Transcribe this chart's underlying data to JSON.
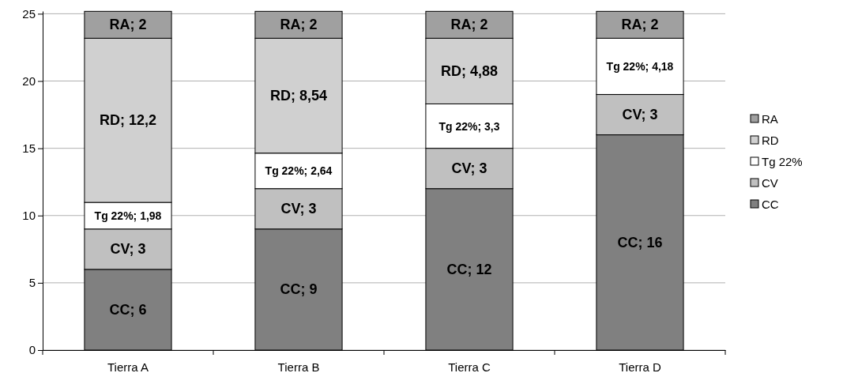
{
  "chart_data": {
    "type": "bar",
    "stacked": true,
    "categories": [
      "Tierra A",
      "Tierra B",
      "Tierra C",
      "Tierra D"
    ],
    "ylim": [
      0,
      25.2
    ],
    "yticks": [
      0,
      5,
      10,
      15,
      20,
      25
    ],
    "grid": "y",
    "legend": "right",
    "series": [
      {
        "name": "CC",
        "color": "#808080",
        "values": [
          6,
          9,
          12,
          16
        ],
        "value_labels": [
          "CC; 6",
          "CC; 9",
          "CC; 12",
          "CC; 16"
        ]
      },
      {
        "name": "CV",
        "color": "#c0c0c0",
        "values": [
          3,
          3,
          3,
          3
        ],
        "value_labels": [
          "CV; 3",
          "CV; 3",
          "CV; 3",
          "CV; 3"
        ]
      },
      {
        "name": "Tg 22%",
        "color": "#ffffff",
        "values": [
          1.98,
          2.64,
          3.3,
          4.18
        ],
        "value_labels": [
          "Tg 22%; 1,98",
          "Tg 22%; 2,64",
          "Tg 22%; 3,3",
          "Tg 22%; 4,18"
        ]
      },
      {
        "name": "RD",
        "color": "#d0d0d0",
        "values": [
          12.2,
          8.54,
          4.88,
          null
        ],
        "value_labels": [
          "RD; 12,2",
          "RD; 8,54",
          "RD; 4,88",
          null
        ]
      },
      {
        "name": "RA",
        "color": "#a0a0a0",
        "values": [
          2,
          2,
          2,
          2
        ],
        "value_labels": [
          "RA; 2",
          "RA; 2",
          "RA; 2",
          "RA; 2"
        ]
      }
    ]
  }
}
